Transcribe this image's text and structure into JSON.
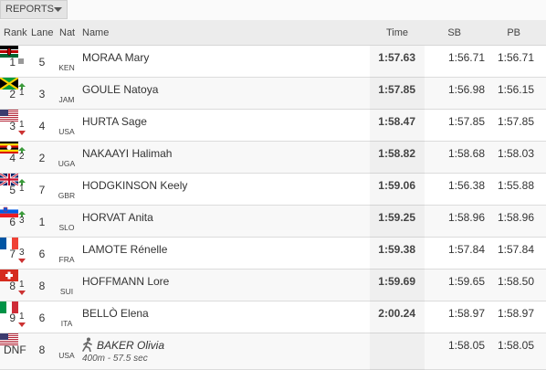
{
  "toolbar": {
    "button": "REPORTS"
  },
  "table": {
    "headers": [
      "Rank",
      "Lane",
      "Nat",
      "Name",
      "Time",
      "SB",
      "PB"
    ],
    "rows": [
      {
        "rank": "1",
        "lane": "5",
        "nat": "KEN",
        "name": "MORAA Mary",
        "time": "1:57.63",
        "sb": "1:56.71",
        "pb": "1:56.71"
      },
      {
        "rank": "2",
        "change": "1",
        "lane": "3",
        "nat": "JAM",
        "name": "GOULE Natoya",
        "time": "1:57.85",
        "sb": "1:56.98",
        "pb": "1:56.15"
      },
      {
        "rank": "3",
        "change": "1",
        "lane": "4",
        "nat": "USA",
        "name": "HURTA Sage",
        "time": "1:58.47",
        "sb": "1:57.85",
        "pb": "1:57.85"
      },
      {
        "rank": "4",
        "change": "2",
        "lane": "2",
        "nat": "UGA",
        "name": "NAKAAYI Halimah",
        "time": "1:58.82",
        "sb": "1:58.68",
        "pb": "1:58.03"
      },
      {
        "rank": "5",
        "change": "1",
        "lane": "7",
        "nat": "GBR",
        "name": "HODGKINSON Keely",
        "time": "1:59.06",
        "sb": "1:56.38",
        "pb": "1:55.88"
      },
      {
        "rank": "6",
        "change": "3",
        "lane": "1",
        "nat": "SLO",
        "name": "HORVAT Anita",
        "time": "1:59.25",
        "sb": "1:58.96",
        "pb": "1:58.96"
      },
      {
        "rank": "7",
        "change": "3",
        "lane": "6",
        "nat": "FRA",
        "name": "LAMOTE Rénelle",
        "time": "1:59.38",
        "sb": "1:57.84",
        "pb": "1:57.84"
      },
      {
        "rank": "8",
        "change": "1",
        "lane": "8",
        "nat": "SUI",
        "name": "HOFFMANN Lore",
        "time": "1:59.69",
        "sb": "1:59.65",
        "pb": "1:58.50"
      },
      {
        "rank": "9",
        "change": "1",
        "lane": "6",
        "nat": "ITA",
        "name": "BELLÒ Elena",
        "time": "2:00.24",
        "sb": "1:58.97",
        "pb": "1:58.97"
      },
      {
        "rank": "DNF",
        "lane": "8",
        "nat": "USA",
        "name": "BAKER Olivia",
        "note": "400m - 57.5 sec",
        "sb": "1:58.05",
        "pb": "1:58.05"
      }
    ]
  }
}
